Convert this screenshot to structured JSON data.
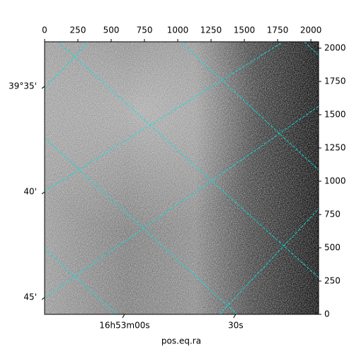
{
  "chart_data": {
    "type": "image",
    "xlabel": "pos.eq.ra",
    "xlim": [
      0,
      2058
    ],
    "ylim": [
      0,
      2048
    ],
    "xticks": [
      0,
      250,
      500,
      750,
      1000,
      1250,
      1500,
      1750,
      2000
    ],
    "yticks": [
      0,
      250,
      500,
      750,
      1000,
      1250,
      1500,
      1750,
      2000
    ],
    "ra_lim": [
      -21.6,
      52.4
    ],
    "ra_ticks": [
      {
        "value": 0,
        "label": "16h53m00s"
      },
      {
        "value": 30,
        "label": "30s"
      }
    ],
    "dec_lim": [
      32.89,
      45.8
    ],
    "dec_ticks": [
      {
        "value": 35,
        "label": "39°35'"
      },
      {
        "value": 40,
        "label": "40'"
      },
      {
        "value": 45,
        "label": "45'"
      }
    ]
  }
}
